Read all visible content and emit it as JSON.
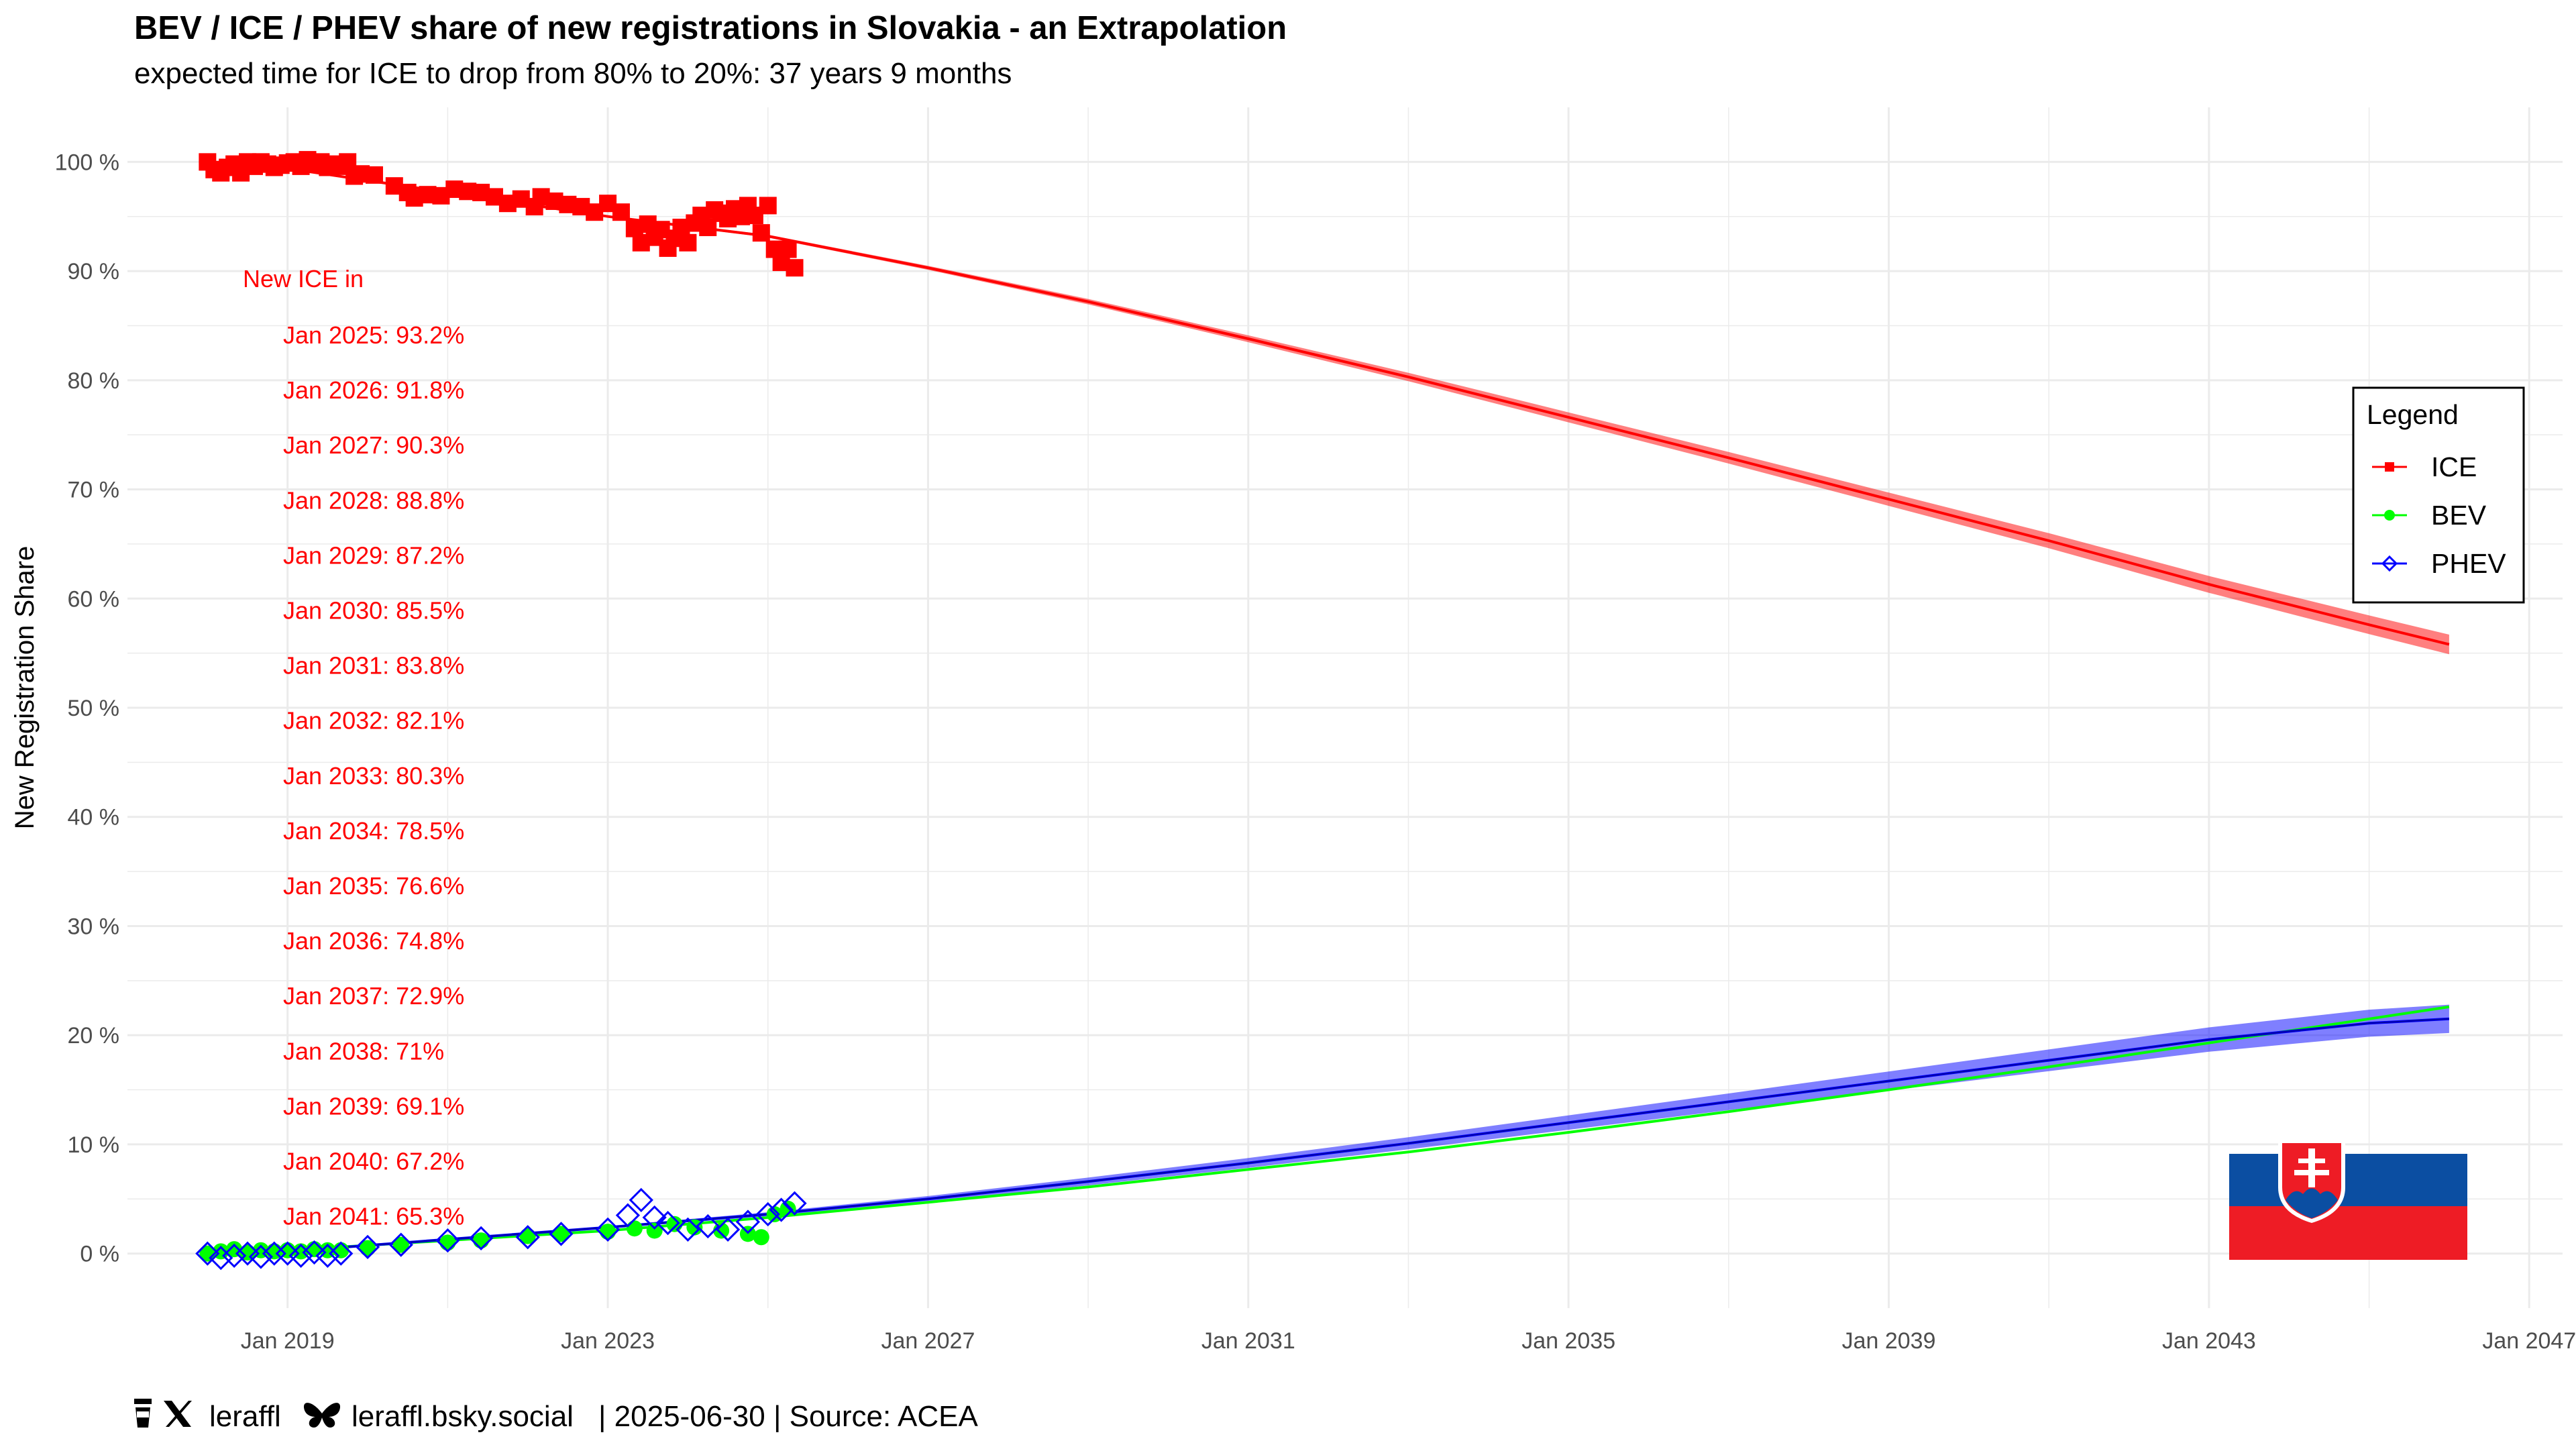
{
  "chart_data": {
    "type": "line",
    "title": "BEV / ICE / PHEV share of new registrations in Slovakia - an Extrapolation",
    "subtitle": "expected time for ICE to drop from 80% to 20%: 37 years 9 months",
    "xlabel": "",
    "ylabel": "New Registration Share",
    "xlim": [
      "2017-01",
      "2047-06"
    ],
    "ylim": [
      -5,
      105
    ],
    "x_ticks": [
      "Jan 2019",
      "Jan 2023",
      "Jan 2027",
      "Jan 2031",
      "Jan 2035",
      "Jan 2039",
      "Jan 2043",
      "Jan 2047"
    ],
    "y_ticks": [
      "0 %",
      "10 %",
      "20 %",
      "30 %",
      "40 %",
      "50 %",
      "60 %",
      "70 %",
      "80 %",
      "90 %",
      "100 %"
    ],
    "grid": true,
    "legend": {
      "title": "Legend",
      "position": "right",
      "entries": [
        {
          "label": "ICE",
          "color": "#ff0000",
          "marker": "square"
        },
        {
          "label": "BEV",
          "color": "#00ff00",
          "marker": "circle"
        },
        {
          "label": "PHEV",
          "color": "#0000ff",
          "marker": "diamond"
        }
      ]
    },
    "series": [
      {
        "name": "ICE",
        "color": "#ff0000",
        "marker": "square",
        "observed": [
          [
            "2018-01",
            100.0
          ],
          [
            "2018-02",
            99.3
          ],
          [
            "2018-03",
            99.0
          ],
          [
            "2018-04",
            99.5
          ],
          [
            "2018-05",
            99.8
          ],
          [
            "2018-06",
            99.0
          ],
          [
            "2018-07",
            100.0
          ],
          [
            "2018-08",
            99.6
          ],
          [
            "2018-09",
            100.0
          ],
          [
            "2018-10",
            99.8
          ],
          [
            "2018-11",
            99.5
          ],
          [
            "2018-12",
            99.7
          ],
          [
            "2019-01",
            99.9
          ],
          [
            "2019-02",
            100.0
          ],
          [
            "2019-03",
            99.6
          ],
          [
            "2019-04",
            100.2
          ],
          [
            "2019-05",
            99.8
          ],
          [
            "2019-06",
            100.0
          ],
          [
            "2019-07",
            99.5
          ],
          [
            "2019-08",
            99.8
          ],
          [
            "2019-09",
            99.6
          ],
          [
            "2019-10",
            100.0
          ],
          [
            "2019-11",
            98.7
          ],
          [
            "2019-12",
            98.9
          ],
          [
            "2020-02",
            98.8
          ],
          [
            "2020-05",
            97.8
          ],
          [
            "2020-07",
            97.2
          ],
          [
            "2020-08",
            96.7
          ],
          [
            "2020-10",
            97.0
          ],
          [
            "2020-12",
            96.9
          ],
          [
            "2021-02",
            97.5
          ],
          [
            "2021-04",
            97.3
          ],
          [
            "2021-06",
            97.2
          ],
          [
            "2021-08",
            96.8
          ],
          [
            "2021-10",
            96.2
          ],
          [
            "2021-12",
            96.6
          ],
          [
            "2022-02",
            95.9
          ],
          [
            "2022-03",
            96.8
          ],
          [
            "2022-05",
            96.4
          ],
          [
            "2022-07",
            96.1
          ],
          [
            "2022-09",
            95.9
          ],
          [
            "2022-11",
            95.4
          ],
          [
            "2023-01",
            96.2
          ],
          [
            "2023-03",
            95.4
          ],
          [
            "2023-05",
            93.9
          ],
          [
            "2023-06",
            92.6
          ],
          [
            "2023-07",
            94.3
          ],
          [
            "2023-08",
            93.1
          ],
          [
            "2023-09",
            93.8
          ],
          [
            "2023-10",
            92.1
          ],
          [
            "2023-11",
            93.0
          ],
          [
            "2023-12",
            94.0
          ],
          [
            "2024-01",
            92.6
          ],
          [
            "2024-02",
            94.4
          ],
          [
            "2024-03",
            95.1
          ],
          [
            "2024-04",
            94.0
          ],
          [
            "2024-05",
            95.6
          ],
          [
            "2024-06",
            95.3
          ],
          [
            "2024-07",
            94.8
          ],
          [
            "2024-08",
            95.7
          ],
          [
            "2024-09",
            95.0
          ],
          [
            "2024-10",
            96.0
          ],
          [
            "2024-11",
            95.1
          ],
          [
            "2024-12",
            93.5
          ],
          [
            "2025-01",
            96.0
          ],
          [
            "2025-02",
            92.0
          ],
          [
            "2025-03",
            90.8
          ],
          [
            "2025-04",
            92.0
          ],
          [
            "2025-05",
            90.3
          ]
        ],
        "trend": [
          [
            "2019-01",
            99.4
          ],
          [
            "2021-01",
            97.2
          ],
          [
            "2023-01",
            95.0
          ],
          [
            "2025-01",
            93.2
          ],
          [
            "2027-01",
            90.3
          ],
          [
            "2029-01",
            87.2
          ],
          [
            "2031-01",
            83.8
          ],
          [
            "2033-01",
            80.3
          ],
          [
            "2035-01",
            76.6
          ],
          [
            "2037-01",
            72.9
          ],
          [
            "2039-01",
            69.1
          ],
          [
            "2041-01",
            65.3
          ],
          [
            "2043-01",
            61.3
          ],
          [
            "2045-01",
            57.6
          ],
          [
            "2046-01",
            55.8
          ]
        ],
        "band_halfwidth_end": 0.9
      },
      {
        "name": "BEV",
        "color": "#00ff00",
        "marker": "circle",
        "observed": [
          [
            "2018-01",
            0.0
          ],
          [
            "2018-03",
            0.2
          ],
          [
            "2018-05",
            0.4
          ],
          [
            "2018-07",
            0.1
          ],
          [
            "2018-09",
            0.3
          ],
          [
            "2018-11",
            0.2
          ],
          [
            "2019-01",
            0.3
          ],
          [
            "2019-03",
            0.2
          ],
          [
            "2019-05",
            0.4
          ],
          [
            "2019-07",
            0.3
          ],
          [
            "2019-09",
            0.3
          ],
          [
            "2020-01",
            0.5
          ],
          [
            "2020-06",
            0.8
          ],
          [
            "2021-01",
            1.0
          ],
          [
            "2021-06",
            1.2
          ],
          [
            "2022-01",
            1.6
          ],
          [
            "2022-06",
            1.8
          ],
          [
            "2023-01",
            2.0
          ],
          [
            "2023-05",
            2.3
          ],
          [
            "2023-08",
            2.1
          ],
          [
            "2023-11",
            2.7
          ],
          [
            "2024-02",
            2.4
          ],
          [
            "2024-06",
            2.1
          ],
          [
            "2024-10",
            1.8
          ],
          [
            "2024-12",
            1.5
          ],
          [
            "2025-02",
            3.6
          ],
          [
            "2025-04",
            4.1
          ]
        ],
        "trend": [
          [
            "2019-01",
            0.3
          ],
          [
            "2021-01",
            1.2
          ],
          [
            "2023-01",
            2.1
          ],
          [
            "2025-01",
            3.3
          ],
          [
            "2027-01",
            4.7
          ],
          [
            "2029-01",
            6.1
          ],
          [
            "2031-01",
            7.7
          ],
          [
            "2033-01",
            9.3
          ],
          [
            "2035-01",
            11.1
          ],
          [
            "2037-01",
            13.0
          ],
          [
            "2039-01",
            15.0
          ],
          [
            "2041-01",
            17.1
          ],
          [
            "2043-01",
            19.3
          ],
          [
            "2045-01",
            21.5
          ],
          [
            "2046-01",
            22.6
          ]
        ]
      },
      {
        "name": "PHEV",
        "color": "#0000ff",
        "marker": "diamond",
        "observed": [
          [
            "2018-01",
            0.0
          ],
          [
            "2018-03",
            -0.4
          ],
          [
            "2018-05",
            -0.2
          ],
          [
            "2018-07",
            0.0
          ],
          [
            "2018-09",
            -0.3
          ],
          [
            "2018-11",
            0.0
          ],
          [
            "2019-01",
            0.0
          ],
          [
            "2019-03",
            -0.2
          ],
          [
            "2019-05",
            0.1
          ],
          [
            "2019-07",
            -0.2
          ],
          [
            "2019-09",
            0.0
          ],
          [
            "2020-01",
            0.6
          ],
          [
            "2020-06",
            0.8
          ],
          [
            "2021-01",
            1.2
          ],
          [
            "2021-06",
            1.4
          ],
          [
            "2022-01",
            1.5
          ],
          [
            "2022-06",
            1.8
          ],
          [
            "2023-01",
            2.2
          ],
          [
            "2023-04",
            3.5
          ],
          [
            "2023-06",
            4.9
          ],
          [
            "2023-08",
            3.3
          ],
          [
            "2023-10",
            2.8
          ],
          [
            "2024-01",
            2.2
          ],
          [
            "2024-04",
            2.5
          ],
          [
            "2024-07",
            2.2
          ],
          [
            "2024-10",
            2.9
          ],
          [
            "2025-01",
            3.6
          ],
          [
            "2025-03",
            4.0
          ],
          [
            "2025-05",
            4.6
          ]
        ],
        "trend": [
          [
            "2019-01",
            0.2
          ],
          [
            "2021-01",
            1.3
          ],
          [
            "2023-01",
            2.4
          ],
          [
            "2025-01",
            3.6
          ],
          [
            "2027-01",
            5.0
          ],
          [
            "2029-01",
            6.6
          ],
          [
            "2031-01",
            8.3
          ],
          [
            "2033-01",
            10.1
          ],
          [
            "2035-01",
            12.0
          ],
          [
            "2037-01",
            13.9
          ],
          [
            "2039-01",
            15.8
          ],
          [
            "2041-01",
            17.7
          ],
          [
            "2043-01",
            19.6
          ],
          [
            "2045-01",
            21.1
          ],
          [
            "2046-01",
            21.5
          ]
        ],
        "band_halfwidth_end": 1.3
      }
    ],
    "annotations": {
      "header": "New ICE in",
      "items": [
        "Jan 2025: 93.2%",
        "Jan 2026: 91.8%",
        "Jan 2027: 90.3%",
        "Jan 2028: 88.8%",
        "Jan 2029: 87.2%",
        "Jan 2030: 85.5%",
        "Jan 2031: 83.8%",
        "Jan 2032: 82.1%",
        "Jan 2033: 80.3%",
        "Jan 2034: 78.5%",
        "Jan 2035: 76.6%",
        "Jan 2036: 74.8%",
        "Jan 2037: 72.9%",
        "Jan 2038: 71%",
        "Jan 2039: 69.1%",
        "Jan 2040: 67.2%",
        "Jan 2041: 65.3%"
      ]
    },
    "flag": {
      "country": "Slovakia",
      "colors": [
        "#ffffff",
        "#0b4ea2",
        "#ee1c25"
      ]
    }
  },
  "caption": {
    "handle": "leraffl",
    "bluesky": "leraffl.bsky.social",
    "rest": "| 2025-06-30 | Source: ACEA",
    "icons": [
      "coffee-cup-icon",
      "x-logo-icon",
      "butterfly-icon"
    ]
  }
}
